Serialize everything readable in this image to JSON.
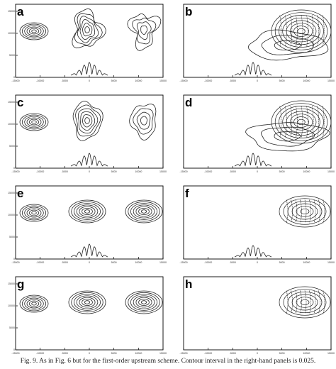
{
  "figure": {
    "caption": "Fig. 9. As in Fig. 6 but for the first-order upstream scheme. Contour interval in the right-hand panels is 0.025.",
    "panels": [
      {
        "letter": "a",
        "y_ticks": [
          "15000",
          "10000",
          "5000",
          "0"
        ],
        "x_ticks": [
          "-15000",
          "-10000",
          "-5000",
          "0",
          "5000",
          "10000",
          "15000"
        ]
      },
      {
        "letter": "b",
        "y_ticks": [],
        "x_ticks": [
          "-15000",
          "-10000",
          "-5000",
          "0",
          "5000",
          "10000",
          "15000"
        ]
      },
      {
        "letter": "c",
        "y_ticks": [
          "15000",
          "10000",
          "5000",
          "0"
        ],
        "x_ticks": [
          "-15000",
          "-10000",
          "-5000",
          "0",
          "5000",
          "10000",
          "15000"
        ]
      },
      {
        "letter": "d",
        "y_ticks": [],
        "x_ticks": [
          "-15000",
          "-10000",
          "-5000",
          "0",
          "5000",
          "10000",
          "15000"
        ]
      },
      {
        "letter": "e",
        "y_ticks": [
          "15000",
          "10000",
          "5000",
          "0"
        ],
        "x_ticks": [
          "-15000",
          "-10000",
          "-5000",
          "0",
          "5000",
          "10000",
          "15000"
        ]
      },
      {
        "letter": "f",
        "y_ticks": [],
        "x_ticks": [
          "-15000",
          "-10000",
          "-5000",
          "0",
          "5000",
          "10000",
          "15000"
        ]
      },
      {
        "letter": "g",
        "y_ticks": [
          "15000",
          "10000",
          "5000",
          "0"
        ],
        "x_ticks": [
          "-15000",
          "-10000",
          "-5000",
          "0",
          "5000",
          "10000",
          "15000"
        ]
      },
      {
        "letter": "h",
        "y_ticks": [],
        "x_ticks": [
          "-15000",
          "-10000",
          "-5000",
          "0",
          "5000",
          "10000",
          "15000"
        ]
      }
    ]
  }
}
